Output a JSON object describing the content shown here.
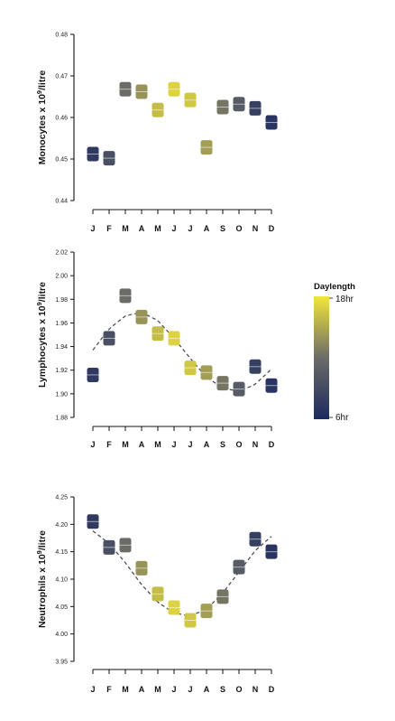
{
  "legend": {
    "title": "Daylength",
    "max_label": "18hr",
    "min_label": "6hr",
    "min_hours": 6,
    "max_hours": 18
  },
  "colors": {
    "short_day": "#1c2a5e",
    "mid_day": "#6b6b68",
    "long_day": "#f2e63a",
    "trend_line": "#444444"
  },
  "chart_data": [
    {
      "type": "scatter",
      "ylabel_main": "Monocytes x 10",
      "ylabel_sup": "9",
      "ylabel_tail": "/litre",
      "ylim": [
        0.44,
        0.48
      ],
      "yticks": [
        0.44,
        0.45,
        0.46,
        0.47,
        0.48
      ],
      "ytick_labels": [
        "0.44",
        "0.45",
        "0.46",
        "0.47",
        "0.48"
      ],
      "categories": [
        "J",
        "F",
        "M",
        "A",
        "M",
        "J",
        "J",
        "A",
        "S",
        "O",
        "N",
        "D"
      ],
      "values": [
        0.4512,
        0.4502,
        0.4668,
        0.4662,
        0.4618,
        0.4668,
        0.4642,
        0.4528,
        0.4625,
        0.4632,
        0.4622,
        0.4588
      ],
      "daylength_hours": [
        7.5,
        9.5,
        12.0,
        14.0,
        16.0,
        17.0,
        16.5,
        14.5,
        12.5,
        10.5,
        8.0,
        7.0
      ],
      "trend": null
    },
    {
      "type": "scatter",
      "ylabel_main": "Lymphocytes x 10",
      "ylabel_sup": "9",
      "ylabel_tail": "/litre",
      "ylim": [
        1.88,
        2.02
      ],
      "yticks": [
        1.88,
        1.9,
        1.92,
        1.94,
        1.96,
        1.98,
        2.0,
        2.02
      ],
      "ytick_labels": [
        "1.88",
        "1.90",
        "1.92",
        "1.94",
        "1.96",
        "1.98",
        "2.00",
        "2.02"
      ],
      "categories": [
        "J",
        "F",
        "M",
        "A",
        "M",
        "J",
        "J",
        "A",
        "S",
        "O",
        "N",
        "D"
      ],
      "values": [
        1.916,
        1.947,
        1.983,
        1.965,
        1.951,
        1.947,
        1.922,
        1.918,
        1.909,
        1.904,
        1.923,
        1.907
      ],
      "daylength_hours": [
        7.5,
        9.5,
        12.0,
        14.0,
        16.0,
        17.0,
        16.5,
        14.5,
        12.5,
        10.5,
        8.0,
        7.0
      ],
      "trend": {
        "x": [
          0,
          1,
          2,
          3,
          4,
          5,
          6,
          7,
          8,
          9,
          10,
          11
        ],
        "y": [
          1.937,
          1.955,
          1.966,
          1.969,
          1.962,
          1.947,
          1.93,
          1.914,
          1.905,
          1.902,
          1.908,
          1.921
        ]
      }
    },
    {
      "type": "scatter",
      "ylabel_main": "Neutrophils x 10",
      "ylabel_sup": "9",
      "ylabel_tail": "/litre",
      "ylim": [
        3.95,
        4.25
      ],
      "yticks": [
        3.95,
        4.0,
        4.05,
        4.1,
        4.15,
        4.2,
        4.25
      ],
      "ytick_labels": [
        "3.95",
        "4.00",
        "4.05",
        "4.10",
        "4.15",
        "4.20",
        "4.25"
      ],
      "categories": [
        "J",
        "F",
        "M",
        "A",
        "M",
        "J",
        "J",
        "A",
        "S",
        "O",
        "N",
        "D"
      ],
      "values": [
        4.205,
        4.158,
        4.162,
        4.12,
        4.073,
        4.048,
        4.025,
        4.042,
        4.068,
        4.122,
        4.173,
        4.15
      ],
      "daylength_hours": [
        7.5,
        9.5,
        12.0,
        14.0,
        16.0,
        17.0,
        16.5,
        14.5,
        12.5,
        10.5,
        8.0,
        7.0
      ],
      "trend": {
        "x": [
          0,
          1,
          2,
          3,
          4,
          5,
          6,
          7,
          8,
          9,
          10,
          11
        ],
        "y": [
          4.188,
          4.165,
          4.13,
          4.09,
          4.058,
          4.038,
          4.033,
          4.045,
          4.075,
          4.113,
          4.152,
          4.178
        ]
      }
    }
  ]
}
